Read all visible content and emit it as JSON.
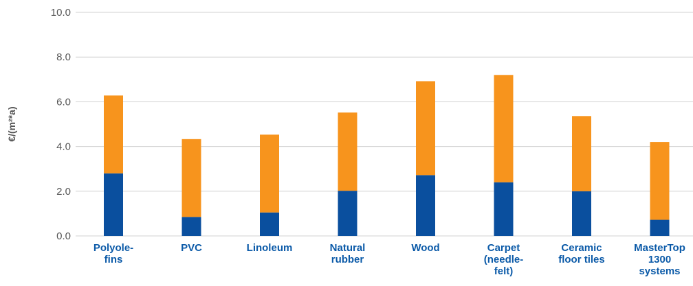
{
  "chart_data": {
    "type": "bar",
    "stacked": true,
    "categories": [
      [
        "Polyole-",
        "fins"
      ],
      [
        "PVC"
      ],
      [
        "Linoleum"
      ],
      [
        "Natural",
        "rubber"
      ],
      [
        "Wood"
      ],
      [
        "Carpet",
        "(needle-",
        "felt)"
      ],
      [
        "Ceramic",
        "floor tiles"
      ],
      [
        "MasterTop",
        "1300",
        "systems"
      ]
    ],
    "series": [
      {
        "color": "#0a4f9e",
        "values": [
          2.8,
          0.85,
          1.05,
          2.02,
          2.72,
          2.4,
          2.0,
          0.72
        ]
      },
      {
        "color": "#f7941d",
        "values": [
          3.48,
          3.48,
          3.48,
          3.5,
          4.2,
          4.8,
          3.36,
          3.48
        ]
      }
    ],
    "ylabel": "€/(m²*a)",
    "ylim": [
      0,
      10
    ],
    "yticks": [
      "0.0",
      "2.0",
      "4.0",
      "6.0",
      "8.0",
      "10.0"
    ],
    "grid": true,
    "legend": "none"
  }
}
